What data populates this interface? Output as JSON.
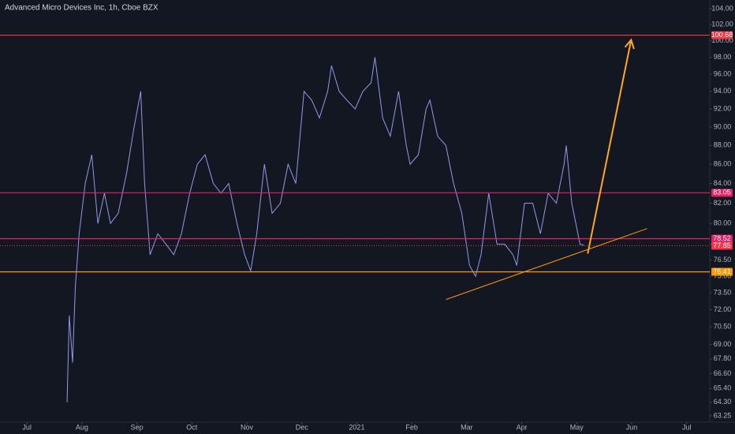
{
  "chart_data": {
    "type": "line",
    "title": "Advanced Micro Devices Inc, 1h, Cboe BZX",
    "log_scale": true,
    "grid": false,
    "xlim": [
      -0.49,
      12.42
    ],
    "xticks": [
      {
        "value": 0,
        "label": "Jul"
      },
      {
        "value": 1,
        "label": "Aug"
      },
      {
        "value": 2,
        "label": "Sep"
      },
      {
        "value": 3,
        "label": "Oct"
      },
      {
        "value": 4,
        "label": "Nov"
      },
      {
        "value": 5,
        "label": "Dec"
      },
      {
        "value": 6,
        "label": "2021"
      },
      {
        "value": 7,
        "label": "Feb"
      },
      {
        "value": 8,
        "label": "Mar"
      },
      {
        "value": 9,
        "label": "Apr"
      },
      {
        "value": 10,
        "label": "May"
      },
      {
        "value": 11,
        "label": "Jun"
      },
      {
        "value": 12,
        "label": "Jul"
      }
    ],
    "ylim": [
      62.76,
      105.1
    ],
    "yticks": [
      {
        "value": 104,
        "label": "104.00"
      },
      {
        "value": 102,
        "label": "102.00"
      },
      {
        "value": 100,
        "label": "100.00"
      },
      {
        "value": 98,
        "label": "98.00"
      },
      {
        "value": 96,
        "label": "96.00"
      },
      {
        "value": 94,
        "label": "94.00"
      },
      {
        "value": 92,
        "label": "92.00"
      },
      {
        "value": 90,
        "label": "90.00"
      },
      {
        "value": 88,
        "label": "88.00"
      },
      {
        "value": 86,
        "label": "86.00"
      },
      {
        "value": 84,
        "label": "84.00"
      },
      {
        "value": 82,
        "label": "82.00"
      },
      {
        "value": 80,
        "label": "80.00"
      },
      {
        "value": 78,
        "label": "78.00"
      },
      {
        "value": 76.5,
        "label": "76.50"
      },
      {
        "value": 75,
        "label": "75.00"
      },
      {
        "value": 73.5,
        "label": "73.50"
      },
      {
        "value": 72,
        "label": "72.00"
      },
      {
        "value": 70.5,
        "label": "70.50"
      },
      {
        "value": 69,
        "label": "69.00"
      },
      {
        "value": 67.8,
        "label": "67.80"
      },
      {
        "value": 66.6,
        "label": "66.60"
      },
      {
        "value": 65.4,
        "label": "65.40"
      },
      {
        "value": 64.3,
        "label": "64.30"
      },
      {
        "value": 63.25,
        "label": "63.25"
      }
    ],
    "series": [
      {
        "color": "#9598e8",
        "x": [
          0.73,
          0.77,
          0.83,
          0.88,
          0.95,
          1.06,
          1.18,
          1.29,
          1.41,
          1.52,
          1.66,
          1.81,
          1.95,
          2.07,
          2.14,
          2.24,
          2.38,
          2.53,
          2.67,
          2.81,
          2.96,
          3.1,
          3.24,
          3.39,
          3.53,
          3.67,
          3.82,
          3.96,
          4.07,
          4.18,
          4.32,
          4.46,
          4.61,
          4.75,
          4.89,
          5.04,
          5.18,
          5.32,
          5.47,
          5.54,
          5.68,
          5.82,
          5.97,
          6.11,
          6.26,
          6.33,
          6.47,
          6.61,
          6.76,
          6.9,
          6.97,
          7.12,
          7.26,
          7.33,
          7.47,
          7.62,
          7.76,
          7.91,
          8.05,
          8.16,
          8.26,
          8.4,
          8.55,
          8.69,
          8.84,
          8.91,
          9.05,
          9.2,
          9.34,
          9.48,
          9.63,
          9.77,
          9.81,
          9.91,
          10.06,
          10.13
        ],
        "values": [
          64.3,
          71.5,
          67.5,
          74,
          79,
          84,
          87,
          80,
          83,
          80,
          81,
          85,
          90,
          94,
          84,
          77,
          79,
          78,
          77,
          79,
          83,
          86,
          87,
          84,
          83,
          84,
          80,
          77,
          75.5,
          79,
          86,
          81,
          82,
          86,
          84,
          94,
          93,
          91,
          94,
          97,
          94,
          93,
          92,
          94,
          95,
          98,
          91,
          89,
          94,
          88,
          86,
          87,
          92,
          93,
          89,
          88,
          84,
          81,
          76,
          75,
          77,
          83,
          78,
          78,
          77,
          76,
          82,
          82,
          79,
          83,
          82,
          86,
          88,
          82,
          78,
          77.9
        ]
      }
    ],
    "levels": [
      {
        "value": 100.68,
        "color": "#f23645",
        "dash": false
      },
      {
        "value": 83.05,
        "color": "#e91e63",
        "dash": false
      },
      {
        "value": 78.52,
        "color": "#e91e63",
        "dash": false
      },
      {
        "value": 77.85,
        "color": "#f23645",
        "dash": true
      },
      {
        "value": 75.41,
        "color": "#ff9800",
        "dash": false
      }
    ],
    "trendline": {
      "x": [
        7.62,
        11.28
      ],
      "y": [
        72.9,
        79.5
      ],
      "color": "#ff9800"
    },
    "arrow": {
      "x": [
        10.2,
        10.99
      ],
      "y": [
        77.1,
        100.1
      ],
      "color": "#ffa726"
    }
  }
}
